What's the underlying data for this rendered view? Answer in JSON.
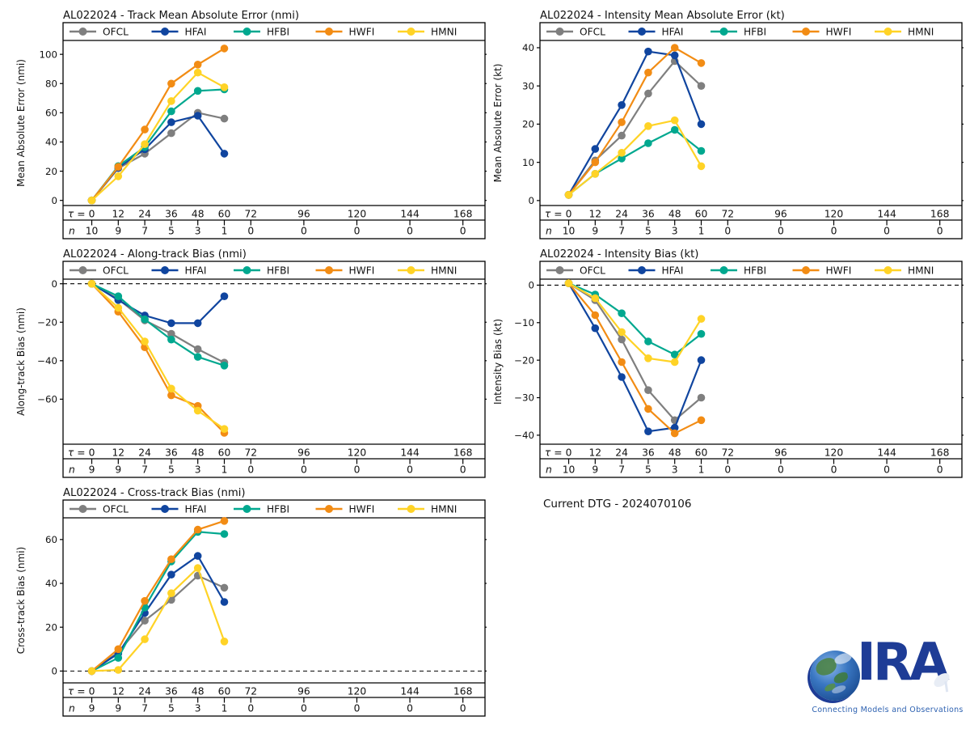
{
  "footer": {
    "current_dtg": "Current DTG - 2024070106"
  },
  "logo": {
    "name": "CIRA",
    "letters": "IRA",
    "tagline": "Connecting Models and Observations",
    "letter_color": "#1e3c96",
    "tagline_color": "#2e62b1"
  },
  "legend_labels": [
    "OFCL",
    "HFAI",
    "HFBI",
    "HWFI",
    "HMNI"
  ],
  "series_colors": {
    "OFCL": "#7f7f7f",
    "HFAI": "#10459f",
    "HFBI": "#00a88f",
    "HWFI": "#f28c14",
    "HMNI": "#ffd326"
  },
  "chart_data": [
    {
      "type": "line",
      "title": "AL022024 - Track Mean Absolute Error (nmi)",
      "ylabel": "Mean Absolute Error (nmi)",
      "x": [
        0,
        12,
        24,
        36,
        48,
        60
      ],
      "xticks": [
        0,
        12,
        24,
        36,
        48,
        60,
        72,
        96,
        120,
        144,
        168
      ],
      "xlim": [
        -13,
        178
      ],
      "ylim": [
        -3.5,
        109.5
      ],
      "yticks": [
        0,
        20,
        40,
        60,
        80,
        100
      ],
      "zero_line": false,
      "tau_prefix": "τ =",
      "n_label": "n",
      "n_values": [
        10,
        9,
        7,
        5,
        3,
        1,
        0,
        0,
        0,
        0,
        0
      ],
      "series": [
        {
          "name": "OFCL",
          "color": "#7f7f7f",
          "values": [
            0,
            22,
            32,
            46,
            60,
            56
          ]
        },
        {
          "name": "HFAI",
          "color": "#10459f",
          "values": [
            0,
            22.5,
            35,
            53.5,
            58,
            32
          ]
        },
        {
          "name": "HFBI",
          "color": "#00a88f",
          "values": [
            0,
            23.5,
            36.5,
            61,
            75,
            76
          ]
        },
        {
          "name": "HWFI",
          "color": "#f28c14",
          "values": [
            0,
            23,
            48.5,
            80,
            93,
            104
          ]
        },
        {
          "name": "HMNI",
          "color": "#ffd326",
          "values": [
            0,
            16.5,
            38.5,
            68,
            87.5,
            77.5
          ]
        }
      ]
    },
    {
      "type": "line",
      "title": "AL022024 - Intensity Mean Absolute Error (kt)",
      "ylabel": "Mean Absolute Error (kt)",
      "x": [
        0,
        12,
        24,
        36,
        48,
        60
      ],
      "xticks": [
        0,
        12,
        24,
        36,
        48,
        60,
        72,
        96,
        120,
        144,
        168
      ],
      "xlim": [
        -13,
        178
      ],
      "ylim": [
        -1.3,
        41.9
      ],
      "yticks": [
        0,
        10,
        20,
        30,
        40
      ],
      "zero_line": false,
      "tau_prefix": "τ =",
      "n_label": "n",
      "n_values": [
        10,
        9,
        7,
        5,
        3,
        1,
        0,
        0,
        0,
        0,
        0
      ],
      "series": [
        {
          "name": "OFCL",
          "color": "#7f7f7f",
          "values": [
            1.5,
            10.5,
            17,
            28,
            36.5,
            30
          ]
        },
        {
          "name": "HFAI",
          "color": "#10459f",
          "values": [
            1.5,
            13.5,
            25,
            39,
            38,
            20
          ]
        },
        {
          "name": "HFBI",
          "color": "#00a88f",
          "values": [
            1.5,
            7,
            11,
            15,
            18.5,
            13
          ]
        },
        {
          "name": "HWFI",
          "color": "#f28c14",
          "values": [
            1.5,
            10,
            20.5,
            33.5,
            40,
            36
          ]
        },
        {
          "name": "HMNI",
          "color": "#ffd326",
          "values": [
            1.5,
            7,
            12.5,
            19.5,
            21,
            9
          ]
        }
      ]
    },
    {
      "type": "line",
      "title": "AL022024 - Along-track Bias (nmi)",
      "ylabel": "Along-track Bias (nmi)",
      "x": [
        0,
        12,
        24,
        36,
        48,
        60
      ],
      "xticks": [
        0,
        12,
        24,
        36,
        48,
        60,
        72,
        96,
        120,
        144,
        168
      ],
      "xlim": [
        -13,
        178
      ],
      "ylim": [
        -83.4,
        2.4
      ],
      "yticks": [
        0,
        -20,
        -40,
        -60
      ],
      "zero_line": true,
      "tau_prefix": "τ =",
      "n_label": "n",
      "n_values": [
        9,
        9,
        7,
        5,
        3,
        1,
        0,
        0,
        0,
        0,
        0
      ],
      "series": [
        {
          "name": "OFCL",
          "color": "#7f7f7f",
          "values": [
            0,
            -8,
            -19,
            -26,
            -34,
            -41
          ]
        },
        {
          "name": "HFAI",
          "color": "#10459f",
          "values": [
            0,
            -8.5,
            -16.5,
            -20.5,
            -20.5,
            -6.5
          ]
        },
        {
          "name": "HFBI",
          "color": "#00a88f",
          "values": [
            0,
            -6.5,
            -18.5,
            -29,
            -38,
            -42.5
          ]
        },
        {
          "name": "HWFI",
          "color": "#f28c14",
          "values": [
            0,
            -14.5,
            -33,
            -58,
            -63.5,
            -77.5
          ]
        },
        {
          "name": "HMNI",
          "color": "#ffd326",
          "values": [
            0,
            -12.5,
            -30,
            -54.5,
            -66,
            -75.5
          ]
        }
      ]
    },
    {
      "type": "line",
      "title": "AL022024 - Intensity Bias (kt)",
      "ylabel": "Intensity Bias (kt)",
      "x": [
        0,
        12,
        24,
        36,
        48,
        60
      ],
      "xticks": [
        0,
        12,
        24,
        36,
        48,
        60,
        72,
        96,
        120,
        144,
        168
      ],
      "xlim": [
        -13,
        178
      ],
      "ylim": [
        -42.4,
        1.6
      ],
      "yticks": [
        0,
        -10,
        -20,
        -30,
        -40
      ],
      "zero_line": true,
      "tau_prefix": "τ =",
      "n_label": "n",
      "n_values": [
        10,
        9,
        7,
        5,
        3,
        1,
        0,
        0,
        0,
        0,
        0
      ],
      "series": [
        {
          "name": "OFCL",
          "color": "#7f7f7f",
          "values": [
            0.5,
            -4,
            -14.5,
            -28,
            -36,
            -30
          ]
        },
        {
          "name": "HFAI",
          "color": "#10459f",
          "values": [
            0.5,
            -11.5,
            -24.5,
            -39,
            -38,
            -20
          ]
        },
        {
          "name": "HFBI",
          "color": "#00a88f",
          "values": [
            0.5,
            -2.5,
            -7.5,
            -15,
            -18.5,
            -13
          ]
        },
        {
          "name": "HWFI",
          "color": "#f28c14",
          "values": [
            0.5,
            -8,
            -20.5,
            -33,
            -39.5,
            -36
          ]
        },
        {
          "name": "HMNI",
          "color": "#ffd326",
          "values": [
            0.5,
            -3.5,
            -12.5,
            -19.5,
            -20.5,
            -9
          ]
        }
      ]
    },
    {
      "type": "line",
      "title": "AL022024 - Cross-track Bias (nmi)",
      "ylabel": "Cross-track Bias (nmi)",
      "x": [
        0,
        12,
        24,
        36,
        48,
        60
      ],
      "xticks": [
        0,
        12,
        24,
        36,
        48,
        60,
        72,
        96,
        120,
        144,
        168
      ],
      "xlim": [
        -13,
        178
      ],
      "ylim": [
        -5.4,
        69.9
      ],
      "yticks": [
        0,
        20,
        40,
        60
      ],
      "zero_line": true,
      "tau_prefix": "τ =",
      "n_label": "n",
      "n_values": [
        9,
        9,
        7,
        5,
        3,
        1,
        0,
        0,
        0,
        0,
        0
      ],
      "series": [
        {
          "name": "OFCL",
          "color": "#7f7f7f",
          "values": [
            0,
            8.5,
            23,
            32.5,
            43.5,
            38
          ]
        },
        {
          "name": "HFAI",
          "color": "#10459f",
          "values": [
            0,
            8,
            26.5,
            44,
            52.5,
            31.5
          ]
        },
        {
          "name": "HFBI",
          "color": "#00a88f",
          "values": [
            0,
            6,
            29,
            50,
            63.5,
            62.5
          ]
        },
        {
          "name": "HWFI",
          "color": "#f28c14",
          "values": [
            0,
            10,
            32,
            51,
            64.5,
            68.5
          ]
        },
        {
          "name": "HMNI",
          "color": "#ffd326",
          "values": [
            0,
            0.5,
            14.5,
            35.5,
            47,
            13.5
          ]
        }
      ]
    }
  ]
}
